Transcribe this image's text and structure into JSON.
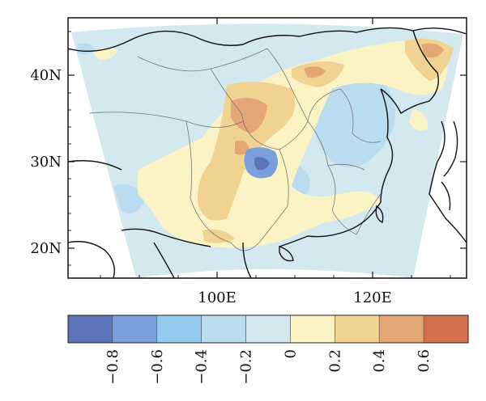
{
  "map": {
    "lat_labels": [
      "40N",
      "30N",
      "20N"
    ],
    "lon_labels": [
      "100E",
      "120E"
    ]
  },
  "colorbar": {
    "colors": [
      "#5b73b9",
      "#7b9fda",
      "#96cbf0",
      "#b9dcee",
      "#d4e9ef",
      "#fbf3c4",
      "#f1d391",
      "#e5a676",
      "#d4704e"
    ],
    "tick_labels": [
      "−0.8",
      "−0.6",
      "−0.4",
      "−0.2",
      "0",
      "0.2",
      "0.4",
      "0.6"
    ]
  }
}
